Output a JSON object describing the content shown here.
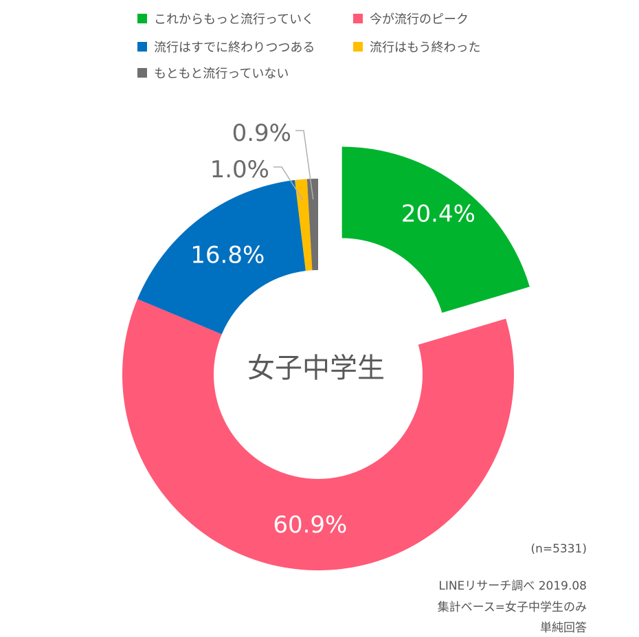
{
  "legend": [
    {
      "label": "これからもっと流行っていく",
      "color": "#00b42e"
    },
    {
      "label": "今が流行のピーク",
      "color": "#ff5a78"
    },
    {
      "label": "流行はすでに終わりつつある",
      "color": "#0070c0"
    },
    {
      "label": "流行はもう終わった",
      "color": "#ffbe00"
    },
    {
      "label": "もともと流行っていない",
      "color": "#6f6f6f"
    }
  ],
  "center_label": "女子中学生",
  "notes": {
    "n": "(n=5331)",
    "source": "LINEリサーチ調べ 2019.08",
    "base": "集計ベース=女子中学生のみ",
    "method": "単純回答"
  },
  "chart_data": {
    "type": "pie",
    "donut": true,
    "title": "女子中学生",
    "slices": [
      {
        "label": "これからもっと流行っていく",
        "value": 20.4,
        "value_label": "20.4%",
        "color": "#00b42e",
        "exploded": true
      },
      {
        "label": "今が流行のピーク",
        "value": 60.9,
        "value_label": "60.9%",
        "color": "#ff5a78"
      },
      {
        "label": "流行はすでに終わりつつある",
        "value": 16.8,
        "value_label": "16.8%",
        "color": "#0070c0"
      },
      {
        "label": "流行はもう終わった",
        "value": 1.0,
        "value_label": "1.0%",
        "color": "#ffbe00"
      },
      {
        "label": "もともと流行っていない",
        "value": 0.9,
        "value_label": "0.9%",
        "color": "#6f6f6f"
      }
    ],
    "legend_position": "top"
  }
}
